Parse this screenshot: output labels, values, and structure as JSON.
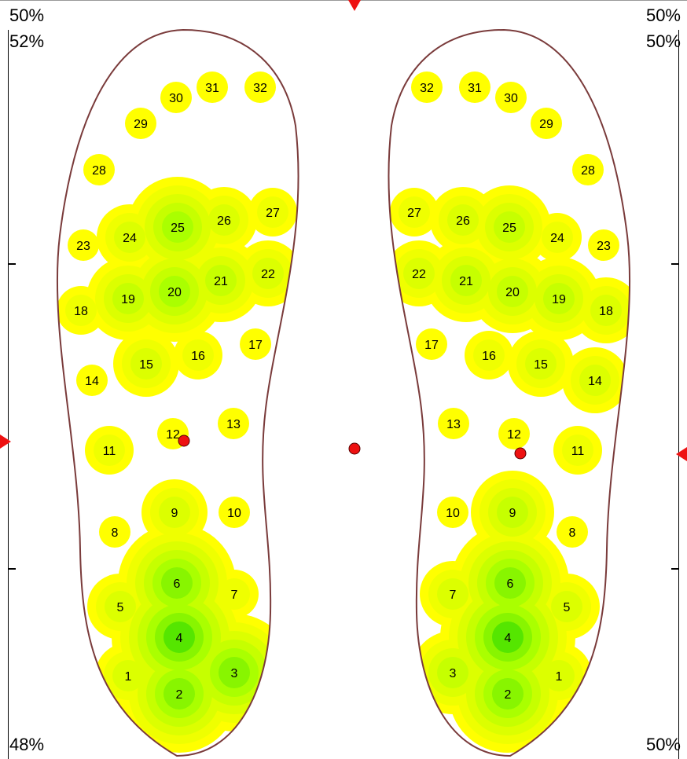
{
  "corners": {
    "top_left": "50%",
    "top_right": "50%",
    "upper_left": "52%",
    "upper_right": "50%",
    "bottom_left": "48%",
    "bottom_right": "50%"
  },
  "colors": {
    "outline": "#7a3b3b",
    "marker": "#ee1111",
    "ramp": [
      "#ffff00",
      "#efff00",
      "#dcff00",
      "#c6ff00",
      "#aaff00",
      "#88f500",
      "#55e600"
    ]
  },
  "chart_data": {
    "type": "heatmap",
    "description_units": "pressure intensity 0-6",
    "left_foot": [
      {
        "id": "1",
        "v": 2
      },
      {
        "id": "2",
        "v": 5
      },
      {
        "id": "3",
        "v": 5
      },
      {
        "id": "4",
        "v": 6
      },
      {
        "id": "5",
        "v": 2
      },
      {
        "id": "6",
        "v": 5
      },
      {
        "id": "7",
        "v": 1
      },
      {
        "id": "8",
        "v": 0
      },
      {
        "id": "9",
        "v": 2
      },
      {
        "id": "10",
        "v": 0
      },
      {
        "id": "11",
        "v": 1
      },
      {
        "id": "12",
        "v": 0
      },
      {
        "id": "13",
        "v": 0
      },
      {
        "id": "14",
        "v": 0
      },
      {
        "id": "15",
        "v": 2
      },
      {
        "id": "16",
        "v": 1
      },
      {
        "id": "17",
        "v": 0
      },
      {
        "id": "18",
        "v": 1
      },
      {
        "id": "19",
        "v": 3
      },
      {
        "id": "20",
        "v": 4
      },
      {
        "id": "21",
        "v": 3
      },
      {
        "id": "22",
        "v": 2
      },
      {
        "id": "23",
        "v": 0
      },
      {
        "id": "24",
        "v": 2
      },
      {
        "id": "25",
        "v": 4
      },
      {
        "id": "26",
        "v": 2
      },
      {
        "id": "27",
        "v": 1
      },
      {
        "id": "28",
        "v": 0
      },
      {
        "id": "29",
        "v": 0
      },
      {
        "id": "30",
        "v": 0
      },
      {
        "id": "31",
        "v": 0
      },
      {
        "id": "32",
        "v": 0
      }
    ],
    "right_foot": [
      {
        "id": "1",
        "v": 2
      },
      {
        "id": "2",
        "v": 5
      },
      {
        "id": "3",
        "v": 3
      },
      {
        "id": "4",
        "v": 6
      },
      {
        "id": "5",
        "v": 2
      },
      {
        "id": "6",
        "v": 5
      },
      {
        "id": "7",
        "v": 2
      },
      {
        "id": "8",
        "v": 0
      },
      {
        "id": "9",
        "v": 3
      },
      {
        "id": "10",
        "v": 0
      },
      {
        "id": "11",
        "v": 1
      },
      {
        "id": "12",
        "v": 0
      },
      {
        "id": "13",
        "v": 0
      },
      {
        "id": "14",
        "v": 2
      },
      {
        "id": "15",
        "v": 2
      },
      {
        "id": "16",
        "v": 1
      },
      {
        "id": "17",
        "v": 0
      },
      {
        "id": "18",
        "v": 2
      },
      {
        "id": "19",
        "v": 3
      },
      {
        "id": "20",
        "v": 3
      },
      {
        "id": "21",
        "v": 3
      },
      {
        "id": "22",
        "v": 2
      },
      {
        "id": "23",
        "v": 0
      },
      {
        "id": "24",
        "v": 1
      },
      {
        "id": "25",
        "v": 3
      },
      {
        "id": "26",
        "v": 2
      },
      {
        "id": "27",
        "v": 1
      },
      {
        "id": "28",
        "v": 0
      },
      {
        "id": "29",
        "v": 0
      },
      {
        "id": "30",
        "v": 0
      },
      {
        "id": "31",
        "v": 0
      },
      {
        "id": "32",
        "v": 0
      }
    ]
  }
}
